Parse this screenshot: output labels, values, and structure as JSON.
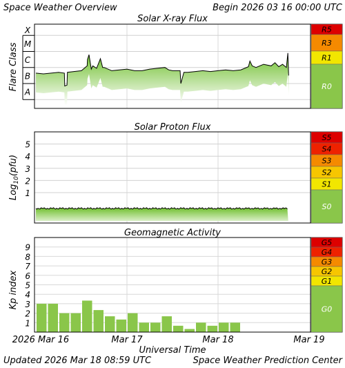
{
  "header": {
    "title": "Space Weather Overview",
    "begin": "Begin 2026 03 16 00:00 UTC"
  },
  "footer": {
    "updated": "Updated 2026 Mar 18 08:59 UTC",
    "center": "Space Weather Prediction Center"
  },
  "x_axis": {
    "label": "Universal Time",
    "ticks": [
      "2026 Mar 16",
      "Mar 17",
      "Mar 18",
      "Mar 19"
    ]
  },
  "colors": {
    "trace_fill": "#7dc93a",
    "extreme": "#dd0000",
    "strong": "#f58a00",
    "moderate": "#f7c600",
    "minor": "#f2e600",
    "quiet": "#8ac64a"
  },
  "chart_data": [
    {
      "type": "area",
      "title": "Solar X-ray Flux",
      "ylabel": "Flare Class",
      "y_ticks": [
        "X",
        "M",
        "C",
        "B",
        "A"
      ],
      "x_unit": "hours since begin",
      "x_range": [
        0,
        72
      ],
      "y_range_class_log": [
        -8.55,
        -3.3
      ],
      "series": [
        {
          "x": [
            0,
            2,
            4,
            6,
            7.5,
            7.6,
            8.2,
            8.3,
            10,
            12,
            13.5,
            13.6,
            14,
            14.6,
            15,
            16,
            17,
            17.6,
            18,
            20,
            22,
            24,
            26,
            28,
            30,
            32,
            34,
            35,
            36,
            37,
            38,
            38.2,
            39,
            40,
            42,
            44,
            46,
            48,
            50,
            52,
            54,
            56,
            56.4,
            57,
            58,
            60,
            62,
            63,
            64,
            65,
            66,
            66.4,
            66.6
          ],
          "y_log": [
            -6.35,
            -6.4,
            -6.35,
            -6.3,
            -6.35,
            -7.15,
            -7.1,
            -6.3,
            -6.25,
            -6.2,
            -5.9,
            -5.5,
            -5.2,
            -6.1,
            -5.9,
            -6.05,
            -5.45,
            -6.0,
            -6.0,
            -6.2,
            -6.15,
            -6.1,
            -6.2,
            -6.2,
            -6.1,
            -6.05,
            -6.0,
            -6.15,
            -6.2,
            -6.2,
            -6.2,
            -7.0,
            -6.3,
            -6.3,
            -6.25,
            -6.2,
            -6.25,
            -6.2,
            -6.15,
            -6.2,
            -6.15,
            -5.95,
            -5.6,
            -5.9,
            -6.0,
            -5.8,
            -5.9,
            -5.7,
            -5.95,
            -5.8,
            -6.0,
            -5.1,
            -6.5
          ]
        }
      ],
      "scale": [
        {
          "label": "R5",
          "color": "#dd0000"
        },
        {
          "label": "R3",
          "color": "#f58a00"
        },
        {
          "label": "R1",
          "color": "#f2e600"
        },
        {
          "label": "R0",
          "color": "#8ac64a"
        }
      ]
    },
    {
      "type": "area",
      "title": "Solar Proton Flux",
      "ylabel": "Log10(pfu)",
      "y_ticks": [
        "1",
        "2",
        "3",
        "4",
        "5"
      ],
      "x_unit": "hours since begin",
      "x_range": [
        0,
        72
      ],
      "y_range_log_pfu": [
        -1.5,
        6.0
      ],
      "series": [
        {
          "x": [
            0,
            8,
            16,
            24,
            32,
            40,
            48,
            56,
            66.5
          ],
          "y_log_pfu": [
            -0.3,
            -0.3,
            -0.28,
            -0.3,
            -0.3,
            -0.28,
            -0.3,
            -0.3,
            -0.3
          ]
        }
      ],
      "scale": [
        {
          "label": "S5",
          "color": "#dd0000"
        },
        {
          "label": "S4",
          "color": "#ee2200"
        },
        {
          "label": "S3",
          "color": "#f58a00"
        },
        {
          "label": "S2",
          "color": "#f7c600"
        },
        {
          "label": "S1",
          "color": "#f2e600"
        },
        {
          "label": "S0",
          "color": "#8ac64a"
        }
      ]
    },
    {
      "type": "bar",
      "title": "Geomagnetic Activity",
      "ylabel": "Kp index",
      "y_ticks": [
        "1",
        "2",
        "3",
        "4",
        "5",
        "6",
        "7",
        "8",
        "9"
      ],
      "y_range": [
        0,
        10
      ],
      "x_unit": "3-hour intervals from begin",
      "values": [
        3,
        3,
        2,
        2,
        3.33,
        2.33,
        1.67,
        1.33,
        2,
        1,
        1,
        1.67,
        0.67,
        0.33,
        1,
        0.67,
        1,
        1
      ],
      "scale": [
        {
          "label": "G5",
          "color": "#dd0000"
        },
        {
          "label": "G4",
          "color": "#ee2200"
        },
        {
          "label": "G3",
          "color": "#f58a00"
        },
        {
          "label": "G2",
          "color": "#f7c600"
        },
        {
          "label": "G1",
          "color": "#f2e600"
        },
        {
          "label": "G0",
          "color": "#8ac64a"
        }
      ]
    }
  ]
}
